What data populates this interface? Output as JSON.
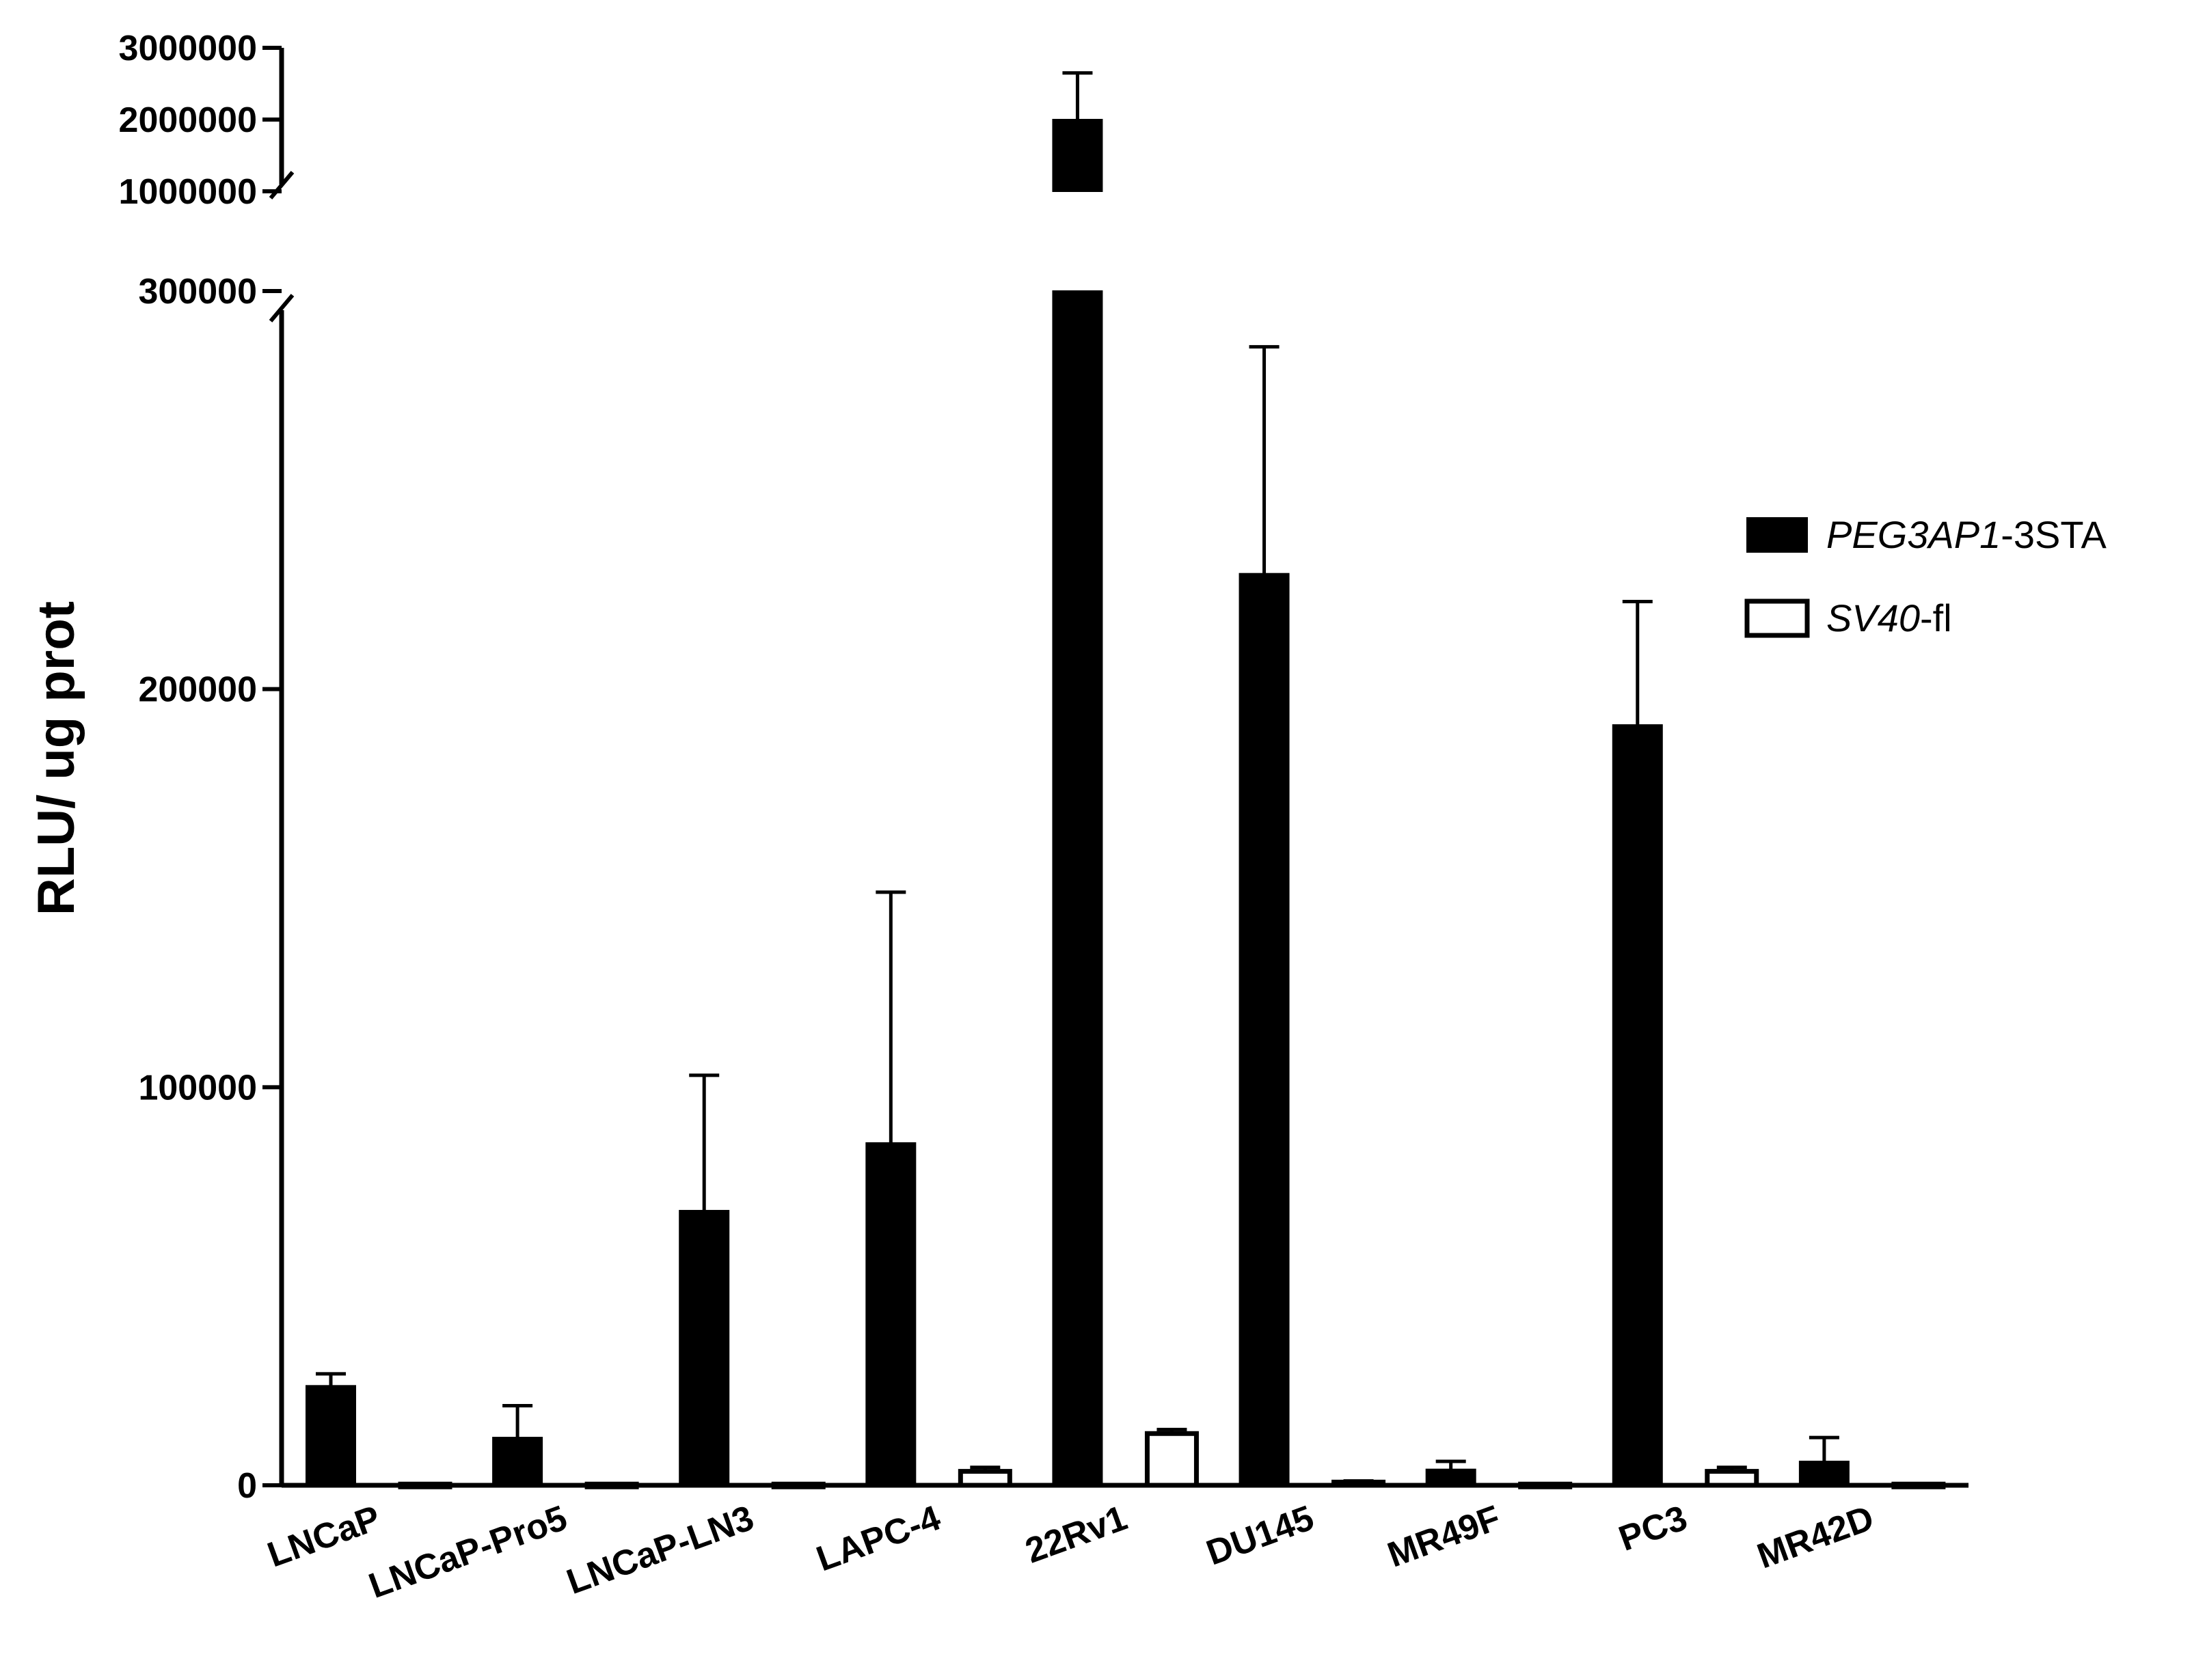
{
  "chart_data": {
    "type": "bar",
    "ylabel": "RLU/ ug prot",
    "xlabel": "",
    "title": "",
    "axis_break": true,
    "ylim_lower": [
      0,
      300000
    ],
    "ylim_upper": [
      1000000,
      3000000
    ],
    "yticks_lower": [
      0,
      100000,
      200000,
      300000
    ],
    "yticks_upper": [
      1000000,
      2000000,
      3000000
    ],
    "ytick_labels_lower": [
      "0",
      "100000",
      "200000",
      "300000"
    ],
    "ytick_labels_upper": [
      "1000000",
      "2000000",
      "3000000"
    ],
    "legend_position": "right",
    "categories": [
      "LNCaP",
      "LNCaP-Pro5",
      "LNCaP-LN3",
      "LAPC-4",
      "22Rv1",
      "DU145",
      "MR49F",
      "PC3",
      "MR42D"
    ],
    "series": [
      {
        "name_parts": [
          "PEG3AP1",
          "-3STA"
        ],
        "fill": "#000000",
        "values": [
          25000,
          12000,
          69000,
          86000,
          2000000,
          229000,
          4000,
          191000,
          6000
        ],
        "errors": [
          3000,
          8000,
          34000,
          63000,
          650000,
          57000,
          2000,
          31000,
          6000
        ]
      },
      {
        "name_parts": [
          "SV40",
          "-fl"
        ],
        "fill": "#ffffff",
        "values": [
          300,
          300,
          300,
          3500,
          13000,
          800,
          300,
          3500,
          300
        ],
        "errors": [
          0,
          0,
          0,
          1000,
          1000,
          300,
          0,
          1000,
          0
        ]
      }
    ]
  }
}
